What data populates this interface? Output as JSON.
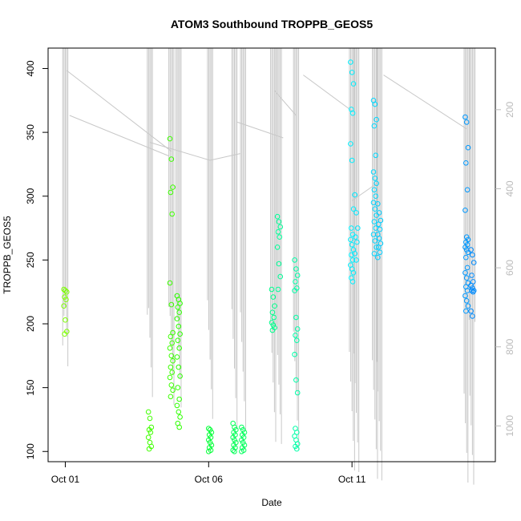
{
  "chart_data": {
    "type": "scatter",
    "title": "ATOM3 Southbound TROPPB_GEOS5",
    "xlabel": "Date",
    "ylabel": "TROPPB_GEOS5",
    "x_unit": "day of October 2017",
    "xlim": [
      0.4,
      16.0
    ],
    "ylim": [
      92,
      416
    ],
    "x_ticks": [
      {
        "value": 1,
        "label": "Oct 01"
      },
      {
        "value": 6,
        "label": "Oct 06"
      },
      {
        "value": 11,
        "label": "Oct 11"
      }
    ],
    "y_ticks": [
      100,
      150,
      200,
      250,
      300,
      350,
      400
    ],
    "right_axis": {
      "label": "",
      "ticks": [
        200,
        400,
        600,
        800,
        1000
      ],
      "reversed": true,
      "range": [
        105,
        1050
      ],
      "color": "#bbbbbb"
    },
    "grid": false,
    "legend": "none",
    "marker": "open-circle",
    "groups": [
      {
        "day": 1.0,
        "color": "#7cff00",
        "values": [
          227,
          226,
          225,
          221,
          219,
          214,
          203,
          194,
          192
        ]
      },
      {
        "day": 3.95,
        "color": "#40ff00",
        "values": [
          131,
          126,
          119,
          117,
          115,
          111,
          107,
          104,
          102
        ]
      },
      {
        "day": 4.7,
        "color": "#3cff00",
        "values": [
          345,
          329,
          307,
          303,
          286,
          232,
          215,
          193,
          190,
          185,
          181,
          175,
          171,
          166,
          162,
          158,
          152,
          148,
          143
        ]
      },
      {
        "day": 4.95,
        "color": "#2eff00",
        "values": [
          222,
          219,
          216,
          213,
          209,
          204,
          198,
          192,
          187,
          181,
          174,
          166,
          159,
          150,
          141,
          136,
          131,
          127,
          122,
          119
        ]
      },
      {
        "day": 6.05,
        "color": "#00ff35",
        "values": [
          118,
          117,
          115,
          113,
          111,
          109,
          107,
          105,
          103,
          101,
          100
        ]
      },
      {
        "day": 6.9,
        "color": "#00ff55",
        "values": [
          122,
          119,
          117,
          115,
          113,
          111,
          109,
          107,
          105,
          103,
          101,
          100
        ]
      },
      {
        "day": 7.2,
        "color": "#00ff5c",
        "values": [
          119,
          117,
          115,
          113,
          111,
          109,
          107,
          105,
          103,
          101,
          100
        ]
      },
      {
        "day": 8.25,
        "color": "#00ff8c",
        "values": [
          227,
          221,
          214,
          209,
          205,
          201,
          199,
          197,
          195
        ]
      },
      {
        "day": 8.45,
        "color": "#00ff99",
        "values": [
          284,
          280,
          276,
          272,
          268,
          260,
          247,
          237,
          227
        ]
      },
      {
        "day": 9.05,
        "color": "#00ffa8",
        "values": [
          250,
          243,
          238,
          233,
          228,
          226,
          205,
          196,
          191,
          187,
          176,
          156,
          146,
          118,
          115,
          112,
          109,
          106,
          104,
          102
        ]
      },
      {
        "day": 11.0,
        "color": "#00f0ff",
        "values": [
          405,
          397,
          388,
          368,
          365,
          341,
          328,
          290,
          275,
          270,
          266,
          262,
          258,
          254,
          250,
          246,
          243,
          240,
          236,
          233
        ]
      },
      {
        "day": 11.15,
        "color": "#00e8ff",
        "values": [
          301,
          287,
          275,
          268,
          264,
          255,
          250
        ]
      },
      {
        "day": 11.8,
        "color": "#00d8ff",
        "values": [
          375,
          372,
          360,
          355,
          332,
          319,
          314,
          310,
          305,
          300,
          295,
          290,
          285,
          280,
          275,
          270,
          265,
          260,
          255
        ]
      },
      {
        "day": 11.95,
        "color": "#00ceff",
        "values": [
          294,
          287,
          281,
          278,
          274,
          270,
          267,
          263,
          260,
          256,
          252
        ]
      },
      {
        "day": 15.0,
        "color": "#0098ff",
        "values": [
          362,
          358,
          338,
          326,
          305,
          289,
          268,
          266,
          264,
          262,
          260,
          258,
          256,
          252,
          244,
          240,
          236,
          232,
          229,
          226,
          222,
          218,
          214,
          210
        ]
      },
      {
        "day": 15.2,
        "color": "#008cff",
        "values": [
          258,
          254,
          248,
          238,
          233,
          230,
          228,
          226,
          226,
          225,
          210,
          206
        ]
      }
    ]
  }
}
